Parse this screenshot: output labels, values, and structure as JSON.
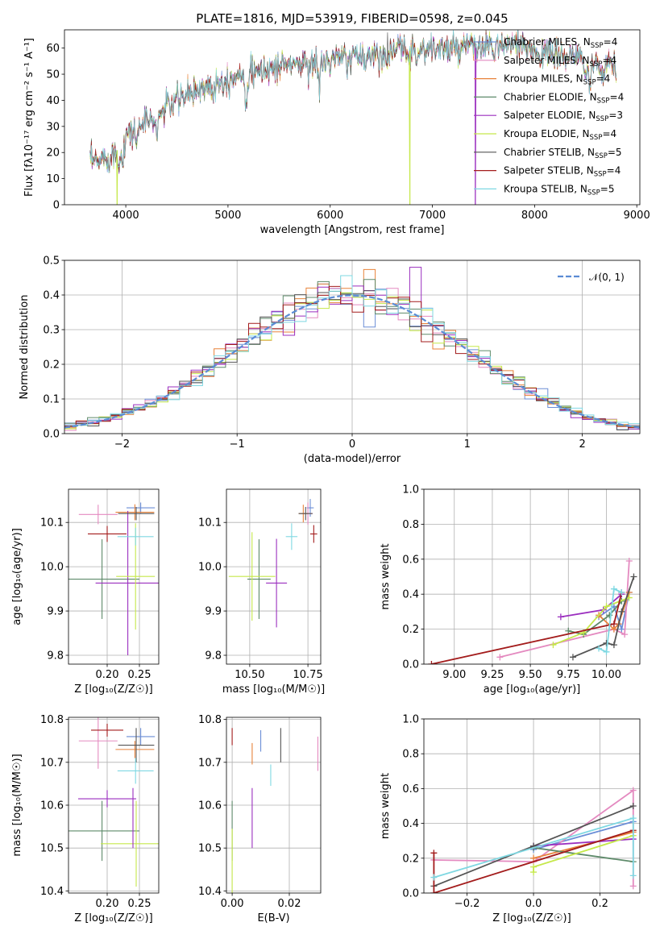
{
  "chart_data": [
    {
      "panel": "spectrum",
      "type": "line",
      "title": "PLATE=1816, MJD=53919, FIBERID=0598, z=0.045",
      "xlabel": "wavelength [Angstrom, rest frame]",
      "ylabel": "Flux [fλ10⁻¹⁷ erg cm⁻² s⁻¹ A⁻¹]",
      "xlim": [
        3400,
        9030
      ],
      "ylim": [
        0,
        67
      ],
      "xticks": [
        4000,
        5000,
        6000,
        7000,
        8000,
        9000
      ],
      "yticks": [
        0,
        10,
        20,
        30,
        40,
        50,
        60
      ],
      "continuum": {
        "x": [
          3650,
          3700,
          3800,
          3900,
          4000,
          4100,
          4200,
          4300,
          4400,
          4500,
          4600,
          4700,
          4800,
          4900,
          5000,
          5100,
          5200,
          5300,
          5400,
          5500,
          5600,
          5700,
          5800,
          5900,
          6000,
          6100,
          6200,
          6300,
          6400,
          6500,
          6600,
          6700,
          6800,
          6900,
          7000,
          7100,
          7200,
          7300,
          7400,
          7500,
          7600,
          7700,
          7800,
          7900,
          8000,
          8100,
          8200,
          8300,
          8400,
          8500,
          8600,
          8700,
          8800
        ],
        "y": [
          17,
          16,
          18,
          20,
          26,
          29,
          32,
          33,
          38,
          40,
          42,
          44,
          46,
          47,
          48,
          50,
          50,
          51,
          52,
          53,
          54,
          54,
          54,
          55,
          55,
          56,
          56,
          57,
          57,
          58,
          59,
          59,
          59,
          59,
          60,
          60,
          59,
          60,
          60,
          60,
          61,
          61,
          61,
          60,
          59,
          58,
          57,
          57,
          56,
          55,
          54,
          53,
          52
        ]
      },
      "features": [
        {
          "x": 3933,
          "depth": 9
        },
        {
          "x": 3968,
          "depth": 6
        },
        {
          "x": 4102,
          "depth": 5
        },
        {
          "x": 4305,
          "depth": 8
        },
        {
          "x": 4861,
          "depth": 4
        },
        {
          "x": 5175,
          "depth": 10
        },
        {
          "x": 5270,
          "depth": 4
        },
        {
          "x": 5893,
          "depth": 12
        },
        {
          "x": 6563,
          "depth": 5
        },
        {
          "x": 7600,
          "depth": 4
        },
        {
          "x": 8498,
          "depth": 8
        },
        {
          "x": 8542,
          "depth": 9
        },
        {
          "x": 8662,
          "depth": 8
        }
      ],
      "dropouts": [
        {
          "x": 3915,
          "series": "Kroupa ELODIE"
        },
        {
          "x": 6780,
          "series": "Kroupa ELODIE"
        },
        {
          "x": 7420,
          "series": "Salpeter ELODIE"
        }
      ],
      "spike": {
        "x": 6563,
        "y": 66,
        "series": "Chabrier STELIB"
      },
      "series": [
        {
          "name": "Chabrier MILES, N",
          "sub": "SSP",
          "tail": "=4",
          "color": "#6b8ed6"
        },
        {
          "name": "Salpeter MILES, N",
          "sub": "SSP",
          "tail": "=4",
          "color": "#e48ac0"
        },
        {
          "name": "Kroupa MILES, N",
          "sub": "SSP",
          "tail": "=4",
          "color": "#e8823a"
        },
        {
          "name": "Chabrier ELODIE, N",
          "sub": "SSP",
          "tail": "=4",
          "color": "#5e8a6a"
        },
        {
          "name": "Salpeter ELODIE, N",
          "sub": "SSP",
          "tail": "=3",
          "color": "#9b2fbf"
        },
        {
          "name": "Kroupa ELODIE, N",
          "sub": "SSP",
          "tail": "=4",
          "color": "#c5e84a"
        },
        {
          "name": "Chabrier STELIB, N",
          "sub": "SSP",
          "tail": "=5",
          "color": "#555555"
        },
        {
          "name": "Salpeter STELIB, N",
          "sub": "SSP",
          "tail": "=4",
          "color": "#a31c1c"
        },
        {
          "name": "Kroupa STELIB, N",
          "sub": "SSP",
          "tail": "=5",
          "color": "#7fd8e2"
        }
      ]
    },
    {
      "panel": "residuals",
      "type": "histogram",
      "xlabel": "(data-model)/error",
      "ylabel": "Normed distribution",
      "xlim": [
        -2.5,
        2.5
      ],
      "ylim": [
        0,
        0.5
      ],
      "xticks": [
        -2,
        -1,
        0,
        1,
        2
      ],
      "xtick_labels": [
        "−2",
        "−1",
        "0",
        "1",
        "2"
      ],
      "yticks": [
        0.0,
        0.1,
        0.2,
        0.3,
        0.4,
        0.5
      ],
      "ytick_labels": [
        "0.0",
        "0.1",
        "0.2",
        "0.3",
        "0.4",
        "0.5"
      ],
      "bin_width": 0.1,
      "reference": {
        "label": "𝒩(0, 1)",
        "color": "#5b8bd4"
      },
      "series": [
        {
          "name": "Chabrier MILES",
          "color": "#6b8ed6"
        },
        {
          "name": "Salpeter MILES",
          "color": "#e48ac0"
        },
        {
          "name": "Kroupa MILES",
          "color": "#e8823a"
        },
        {
          "name": "Chabrier ELODIE",
          "color": "#5e8a6a"
        },
        {
          "name": "Salpeter ELODIE",
          "color": "#9b2fbf",
          "spike_x": 0.55,
          "spike_y": 0.48
        },
        {
          "name": "Kroupa ELODIE",
          "color": "#c5e84a"
        },
        {
          "name": "Chabrier STELIB",
          "color": "#555555"
        },
        {
          "name": "Salpeter STELIB",
          "color": "#a31c1c"
        },
        {
          "name": "Kroupa STELIB",
          "color": "#7fd8e2"
        }
      ]
    },
    {
      "panel": "age_vs_Z",
      "type": "errorbar",
      "xlabel": "Z [log₁₀(Z/Z☉)]",
      "ylabel": "age  [log₁₀(age/yr)]",
      "xlim": [
        0.14,
        0.28
      ],
      "ylim": [
        9.78,
        10.175
      ],
      "xticks": [
        0.2,
        0.25
      ],
      "xtick_labels": [
        "0.20",
        "0.25"
      ],
      "yticks": [
        9.8,
        9.9,
        10.0,
        10.1
      ],
      "ytick_labels": [
        "9.8",
        "9.9",
        "10.0",
        "10.1"
      ],
      "points": [
        {
          "x": 0.252,
          "xerr": 0.022,
          "y": 10.133,
          "yerr": 0.012,
          "color": "#6b8ed6"
        },
        {
          "x": 0.186,
          "xerr": 0.03,
          "y": 10.118,
          "yerr": 0.022,
          "color": "#e48ac0"
        },
        {
          "x": 0.243,
          "xerr": 0.03,
          "y": 10.123,
          "yerr": 0.018,
          "color": "#e8823a"
        },
        {
          "x": 0.192,
          "xerr": 0.058,
          "y": 9.972,
          "yerr": 0.09,
          "color": "#5e8a6a"
        },
        {
          "x": 0.232,
          "xerr": 0.05,
          "y": 9.963,
          "yerr": 0.163,
          "color": "#9b2fbf"
        },
        {
          "x": 0.244,
          "xerr": 0.03,
          "y": 9.978,
          "yerr": 0.12,
          "color": "#c5e84a"
        },
        {
          "x": 0.245,
          "xerr": 0.028,
          "y": 10.12,
          "yerr": 0.015,
          "color": "#555555"
        },
        {
          "x": 0.2,
          "xerr": 0.03,
          "y": 10.074,
          "yerr": 0.018,
          "color": "#a31c1c"
        },
        {
          "x": 0.244,
          "xerr": 0.028,
          "y": 10.068,
          "yerr": 0.02,
          "color": "#7fd8e2"
        }
      ]
    },
    {
      "panel": "age_vs_mass",
      "type": "errorbar",
      "xlabel": "mass [log₁₀(M/M☉)]",
      "ylabel": "",
      "xlim": [
        10.4,
        10.805
      ],
      "ylim": [
        9.78,
        10.175
      ],
      "xticks": [
        10.5,
        10.75
      ],
      "xtick_labels": [
        "10.50",
        "10.75"
      ],
      "yticks": [
        9.8,
        9.9,
        10.0,
        10.1
      ],
      "ytick_labels": [
        "9.8",
        "9.9",
        "10.0",
        "10.1"
      ],
      "points": [
        {
          "x": 10.76,
          "xerr": 0.015,
          "y": 10.133,
          "yerr": 0.02,
          "color": "#6b8ed6"
        },
        {
          "x": 10.75,
          "xerr": 0.02,
          "y": 10.12,
          "yerr": 0.025,
          "color": "#e48ac0"
        },
        {
          "x": 10.73,
          "xerr": 0.02,
          "y": 10.12,
          "yerr": 0.02,
          "color": "#e8823a"
        },
        {
          "x": 10.54,
          "xerr": 0.05,
          "y": 9.972,
          "yerr": 0.09,
          "color": "#5e8a6a"
        },
        {
          "x": 10.615,
          "xerr": 0.045,
          "y": 9.963,
          "yerr": 0.1,
          "color": "#9b2fbf"
        },
        {
          "x": 10.51,
          "xerr": 0.1,
          "y": 9.978,
          "yerr": 0.1,
          "color": "#c5e84a"
        },
        {
          "x": 10.74,
          "xerr": 0.03,
          "y": 10.12,
          "yerr": 0.015,
          "color": "#555555"
        },
        {
          "x": 10.775,
          "xerr": 0.015,
          "y": 10.074,
          "yerr": 0.02,
          "color": "#a31c1c"
        },
        {
          "x": 10.68,
          "xerr": 0.025,
          "y": 10.068,
          "yerr": 0.03,
          "color": "#7fd8e2"
        }
      ]
    },
    {
      "panel": "weight_vs_age",
      "type": "line",
      "xlabel": "age  [log₁₀(age/yr)]",
      "ylabel": "mass weight",
      "xlim": [
        8.8,
        10.22
      ],
      "ylim": [
        0,
        1.0
      ],
      "xticks": [
        9.0,
        9.25,
        9.5,
        9.75,
        10.0
      ],
      "xtick_labels": [
        "9.00",
        "9.25",
        "9.50",
        "9.75",
        "10.00"
      ],
      "yticks": [
        0,
        0.2,
        0.4,
        0.6,
        0.8,
        1.0
      ],
      "ytick_labels": [
        "0.0",
        "0.2",
        "0.4",
        "0.6",
        "0.8",
        "1.0"
      ],
      "series": [
        {
          "name": "Chabrier MILES",
          "color": "#6b8ed6",
          "x": [
            9.95,
            10.05,
            10.1,
            10.15
          ],
          "y": [
            0.27,
            0.33,
            0.2,
            0.41
          ]
        },
        {
          "name": "Salpeter MILES",
          "color": "#e48ac0",
          "x": [
            9.3,
            10.05,
            10.12,
            10.15
          ],
          "y": [
            0.04,
            0.2,
            0.17,
            0.59
          ]
        },
        {
          "name": "Kroupa MILES",
          "color": "#e8823a",
          "x": [
            9.95,
            10.05,
            10.08,
            10.15
          ],
          "y": [
            0.28,
            0.2,
            0.23,
            0.41
          ]
        },
        {
          "name": "Chabrier ELODIE",
          "color": "#5e8a6a",
          "x": [
            9.75,
            9.85,
            10.02,
            10.1
          ],
          "y": [
            0.19,
            0.17,
            0.28,
            0.36
          ]
        },
        {
          "name": "Salpeter ELODIE",
          "color": "#9b2fbf",
          "x": [
            9.7,
            9.98,
            10.1
          ],
          "y": [
            0.27,
            0.31,
            0.4
          ]
        },
        {
          "name": "Kroupa ELODIE",
          "color": "#c5e84a",
          "x": [
            9.65,
            9.85,
            10.0,
            10.15
          ],
          "y": [
            0.11,
            0.18,
            0.33,
            0.38
          ]
        },
        {
          "name": "Chabrier STELIB",
          "color": "#555555",
          "x": [
            9.78,
            10.0,
            10.05,
            10.1,
            10.18
          ],
          "y": [
            0.04,
            0.12,
            0.11,
            0.3,
            0.5
          ]
        },
        {
          "name": "Salpeter STELIB",
          "color": "#a31c1c",
          "x": [
            8.85,
            10.05,
            10.1
          ],
          "y": [
            0.0,
            0.23,
            0.41
          ]
        },
        {
          "name": "Kroupa STELIB",
          "color": "#7fd8e2",
          "x": [
            9.95,
            10.0,
            10.05,
            10.1
          ],
          "y": [
            0.09,
            0.07,
            0.43,
            0.41
          ]
        }
      ]
    },
    {
      "panel": "mass_vs_Z",
      "type": "errorbar",
      "xlabel": "Z [log₁₀(Z/Z☉)]",
      "ylabel": "mass [log₁₀(M/M☉)]",
      "xlim": [
        0.14,
        0.28
      ],
      "ylim": [
        10.395,
        10.805
      ],
      "xticks": [
        0.2,
        0.25
      ],
      "xtick_labels": [
        "0.20",
        "0.25"
      ],
      "yticks": [
        10.4,
        10.5,
        10.6,
        10.7,
        10.8
      ],
      "ytick_labels": [
        "10.4",
        "10.5",
        "10.6",
        "10.7",
        "10.8"
      ],
      "points": [
        {
          "x": 0.252,
          "xerr": 0.022,
          "y": 10.76,
          "yerr": 0.02,
          "color": "#6b8ed6"
        },
        {
          "x": 0.186,
          "xerr": 0.03,
          "y": 10.75,
          "yerr": 0.065,
          "color": "#e48ac0"
        },
        {
          "x": 0.243,
          "xerr": 0.03,
          "y": 10.73,
          "yerr": 0.02,
          "color": "#e8823a"
        },
        {
          "x": 0.192,
          "xerr": 0.058,
          "y": 10.54,
          "yerr": 0.07,
          "color": "#5e8a6a"
        },
        {
          "x": 0.2,
          "xerr": 0.045,
          "y": 10.615,
          "yerr": 0.02,
          "color": "#9b2fbf"
        },
        {
          "x": 0.245,
          "xerr": 0.055,
          "y": 10.51,
          "yerr": 0.1,
          "color": "#c5e84a"
        },
        {
          "x": 0.245,
          "xerr": 0.028,
          "y": 10.74,
          "yerr": 0.04,
          "color": "#555555"
        },
        {
          "x": 0.2,
          "xerr": 0.025,
          "y": 10.775,
          "yerr": 0.015,
          "color": "#a31c1c"
        },
        {
          "x": 0.244,
          "xerr": 0.028,
          "y": 10.68,
          "yerr": 0.03,
          "color": "#7fd8e2"
        },
        {
          "x": 0.24,
          "xerr": 0.0,
          "y": 10.57,
          "yerr": 0.07,
          "color": "#9b2fbf"
        }
      ]
    },
    {
      "panel": "mass_vs_EBV",
      "type": "errorbar",
      "xlabel": "E(B-V)",
      "ylabel": "",
      "xlim": [
        -0.002,
        0.031
      ],
      "ylim": [
        10.395,
        10.805
      ],
      "xticks": [
        0.0,
        0.02
      ],
      "xtick_labels": [
        "0.00",
        "0.02"
      ],
      "yticks": [
        10.4,
        10.5,
        10.6,
        10.7,
        10.8
      ],
      "ytick_labels": [
        "10.4",
        "10.5",
        "10.6",
        "10.7",
        "10.8"
      ],
      "points": [
        {
          "x": 0.0,
          "xerr": 0,
          "y": 10.76,
          "yerr": 0.02,
          "color": "#a31c1c"
        },
        {
          "x": 0.0,
          "xerr": 0,
          "y": 10.54,
          "yerr": 0.07,
          "color": "#5e8a6a"
        },
        {
          "x": 0.0,
          "xerr": 0,
          "y": 10.47,
          "yerr": 0.075,
          "color": "#c5e84a"
        },
        {
          "x": 0.007,
          "xerr": 0,
          "y": 10.72,
          "yerr": 0.025,
          "color": "#e8823a"
        },
        {
          "x": 0.007,
          "xerr": 0,
          "y": 10.57,
          "yerr": 0.07,
          "color": "#9b2fbf"
        },
        {
          "x": 0.01,
          "xerr": 0,
          "y": 10.75,
          "yerr": 0.025,
          "color": "#6b8ed6"
        },
        {
          "x": 0.0135,
          "xerr": 0,
          "y": 10.67,
          "yerr": 0.025,
          "color": "#7fd8e2"
        },
        {
          "x": 0.017,
          "xerr": 0,
          "y": 10.74,
          "yerr": 0.04,
          "color": "#555555"
        },
        {
          "x": 0.03,
          "xerr": 0,
          "y": 10.72,
          "yerr": 0.04,
          "color": "#e48ac0"
        }
      ]
    },
    {
      "panel": "weight_vs_Z",
      "type": "line",
      "xlabel": "Z [log₁₀(Z/Z☉)]",
      "ylabel": "mass weight",
      "xlim": [
        -0.33,
        0.32
      ],
      "ylim": [
        0,
        1.0
      ],
      "xticks": [
        -0.2,
        0.0,
        0.2
      ],
      "xtick_labels": [
        "−0.2",
        "0.0",
        "0.2"
      ],
      "yticks": [
        0,
        0.2,
        0.4,
        0.6,
        0.8,
        1.0
      ],
      "ytick_labels": [
        "0.0",
        "0.2",
        "0.4",
        "0.6",
        "0.8",
        "1.0"
      ],
      "series": [
        {
          "name": "Chabrier MILES",
          "color": "#6b8ed6",
          "x": [
            0.0,
            0.3
          ],
          "y": [
            0.25,
            0.41
          ]
        },
        {
          "name": "Salpeter MILES",
          "color": "#e48ac0",
          "x": [
            -0.3,
            0.0,
            0.3,
            0.3
          ],
          "y": [
            0.19,
            0.18,
            0.59,
            0.04
          ]
        },
        {
          "name": "Kroupa MILES",
          "color": "#e8823a",
          "x": [
            0.0,
            0.3
          ],
          "y": [
            0.2,
            0.35
          ]
        },
        {
          "name": "Chabrier ELODIE",
          "color": "#5e8a6a",
          "x": [
            0.0,
            0.3
          ],
          "y": [
            0.26,
            0.18
          ]
        },
        {
          "name": "Salpeter ELODIE",
          "color": "#9b2fbf",
          "x": [
            0.0,
            0.3
          ],
          "y": [
            0.27,
            0.31
          ]
        },
        {
          "name": "Kroupa ELODIE",
          "color": "#c5e84a",
          "x": [
            0.0,
            0.0,
            0.3
          ],
          "y": [
            0.12,
            0.15,
            0.33
          ]
        },
        {
          "name": "Chabrier STELIB",
          "color": "#555555",
          "x": [
            -0.3,
            0.0,
            0.3
          ],
          "y": [
            0.04,
            0.27,
            0.5
          ]
        },
        {
          "name": "Salpeter STELIB",
          "color": "#a31c1c",
          "x": [
            -0.3,
            -0.3,
            0.3
          ],
          "y": [
            0.23,
            0.0,
            0.36
          ]
        },
        {
          "name": "Kroupa STELIB",
          "color": "#7fd8e2",
          "x": [
            -0.3,
            0.3,
            0.3
          ],
          "y": [
            0.09,
            0.43,
            0.1
          ]
        }
      ]
    }
  ]
}
